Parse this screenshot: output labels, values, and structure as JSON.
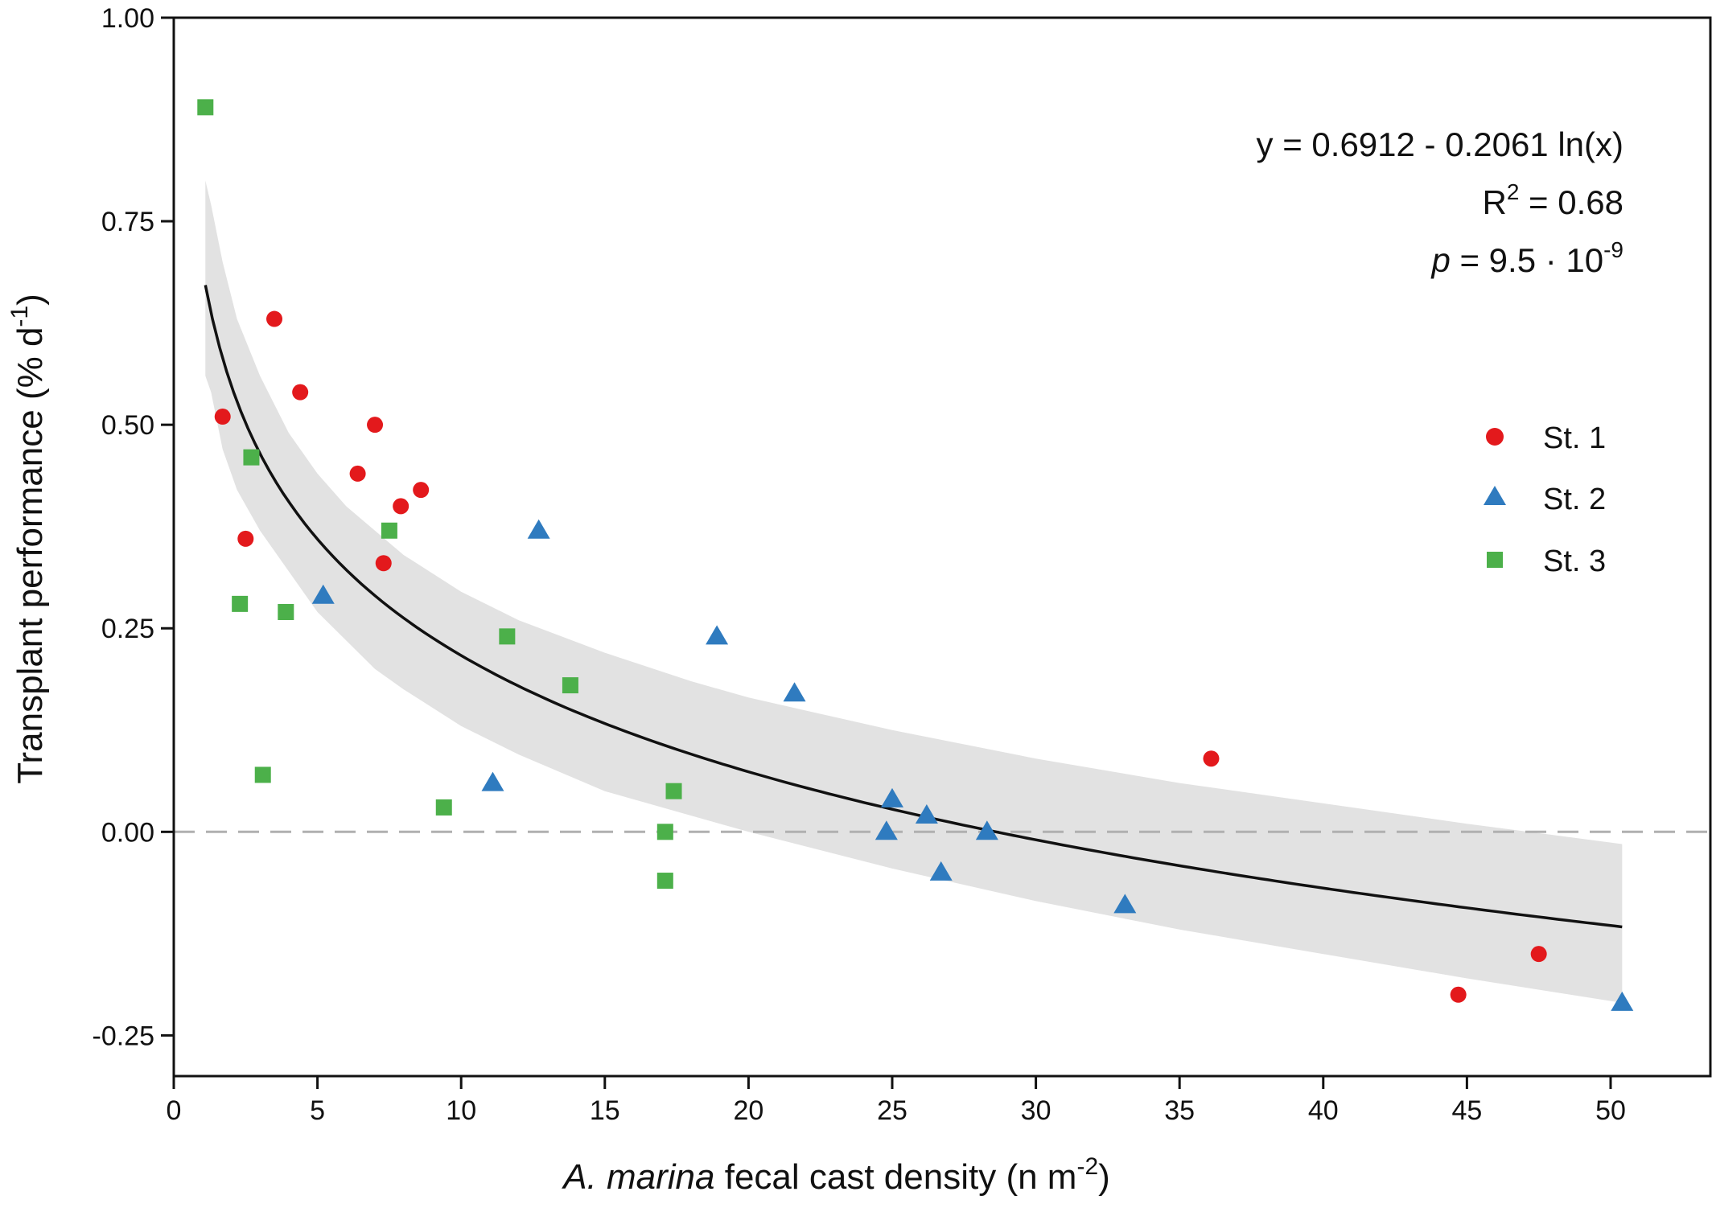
{
  "chart_data": {
    "type": "scatter",
    "xlabel": {
      "italic": "A. marina",
      "rest": " fecal cast density (n m",
      "sup": "-2",
      "close": ")"
    },
    "ylabel": {
      "main": "Transplant performance (%  d",
      "sup": "-1",
      "close": ")"
    },
    "xlim": [
      0,
      53.5
    ],
    "ylim": [
      -0.3,
      1.0
    ],
    "x_ticks": [
      0,
      5,
      10,
      15,
      20,
      25,
      30,
      35,
      40,
      45,
      50
    ],
    "y_ticks": [
      -0.25,
      0.0,
      0.25,
      0.5,
      0.75,
      1.0
    ],
    "y_tick_labels": [
      "-0.25",
      "0.00",
      "0.25",
      "0.50",
      "0.75",
      "1.00"
    ],
    "legend_position": "right",
    "grid": false,
    "reference_line": {
      "y": 0,
      "style": "dashed",
      "color": "#b0b0b0"
    },
    "fit": {
      "intercept": 0.6912,
      "slope": -0.2061,
      "x_range": [
        1.1,
        50.4
      ],
      "band_upper": [
        [
          1.1,
          0.8
        ],
        [
          1.3,
          0.77
        ],
        [
          1.7,
          0.7
        ],
        [
          2.2,
          0.63
        ],
        [
          3,
          0.56
        ],
        [
          4,
          0.49
        ],
        [
          5,
          0.44
        ],
        [
          6,
          0.4
        ],
        [
          7,
          0.37
        ],
        [
          8,
          0.34
        ],
        [
          10,
          0.295
        ],
        [
          12,
          0.26
        ],
        [
          15,
          0.22
        ],
        [
          18,
          0.185
        ],
        [
          20,
          0.165
        ],
        [
          25,
          0.125
        ],
        [
          30,
          0.09
        ],
        [
          35,
          0.06
        ],
        [
          40,
          0.035
        ],
        [
          45,
          0.01
        ],
        [
          50.4,
          -0.015
        ]
      ],
      "band_lower": [
        [
          1.1,
          0.56
        ],
        [
          1.3,
          0.54
        ],
        [
          1.7,
          0.47
        ],
        [
          2.2,
          0.42
        ],
        [
          3,
          0.37
        ],
        [
          4,
          0.32
        ],
        [
          5,
          0.27
        ],
        [
          6,
          0.235
        ],
        [
          7,
          0.2
        ],
        [
          8,
          0.175
        ],
        [
          10,
          0.13
        ],
        [
          12,
          0.095
        ],
        [
          15,
          0.05
        ],
        [
          18,
          0.02
        ],
        [
          20,
          0.0
        ],
        [
          25,
          -0.045
        ],
        [
          30,
          -0.085
        ],
        [
          35,
          -0.12
        ],
        [
          40,
          -0.15
        ],
        [
          45,
          -0.18
        ],
        [
          50.4,
          -0.21
        ]
      ],
      "band_color": "#e2e2e2",
      "line_color": "#111111"
    },
    "annotations": {
      "equation": "y = 0.6912 - 0.2061 ln(x)",
      "r2_label": "R",
      "r2_sup": "2",
      "r2_value": " = 0.68",
      "p_label": "p",
      "p_value": " = 9.5 · 10",
      "p_sup": "-9"
    },
    "series": [
      {
        "name": "St. 1",
        "marker": "circle",
        "color": "#e3191c",
        "points": [
          [
            1.7,
            0.51
          ],
          [
            2.5,
            0.36
          ],
          [
            3.5,
            0.63
          ],
          [
            4.4,
            0.54
          ],
          [
            6.4,
            0.44
          ],
          [
            7.0,
            0.5
          ],
          [
            7.3,
            0.33
          ],
          [
            7.9,
            0.4
          ],
          [
            8.6,
            0.42
          ],
          [
            36.1,
            0.09
          ],
          [
            44.7,
            -0.2
          ],
          [
            47.5,
            -0.15
          ]
        ]
      },
      {
        "name": "St. 2",
        "marker": "triangle",
        "color": "#2f7bbf",
        "points": [
          [
            5.2,
            0.29
          ],
          [
            11.1,
            0.06
          ],
          [
            12.7,
            0.37
          ],
          [
            18.9,
            0.24
          ],
          [
            21.6,
            0.17
          ],
          [
            24.8,
            0.0
          ],
          [
            25.0,
            0.04
          ],
          [
            26.2,
            0.02
          ],
          [
            26.7,
            -0.05
          ],
          [
            28.3,
            0.0
          ],
          [
            33.1,
            -0.09
          ],
          [
            50.4,
            -0.21
          ]
        ]
      },
      {
        "name": "St. 3",
        "marker": "square",
        "color": "#4cb04a",
        "points": [
          [
            1.1,
            0.89
          ],
          [
            2.3,
            0.28
          ],
          [
            2.7,
            0.46
          ],
          [
            3.1,
            0.07
          ],
          [
            3.9,
            0.27
          ],
          [
            7.5,
            0.37
          ],
          [
            9.4,
            0.03
          ],
          [
            11.6,
            0.24
          ],
          [
            13.8,
            0.18
          ],
          [
            17.1,
            0.0
          ],
          [
            17.1,
            -0.06
          ],
          [
            17.4,
            0.05
          ]
        ]
      }
    ]
  }
}
